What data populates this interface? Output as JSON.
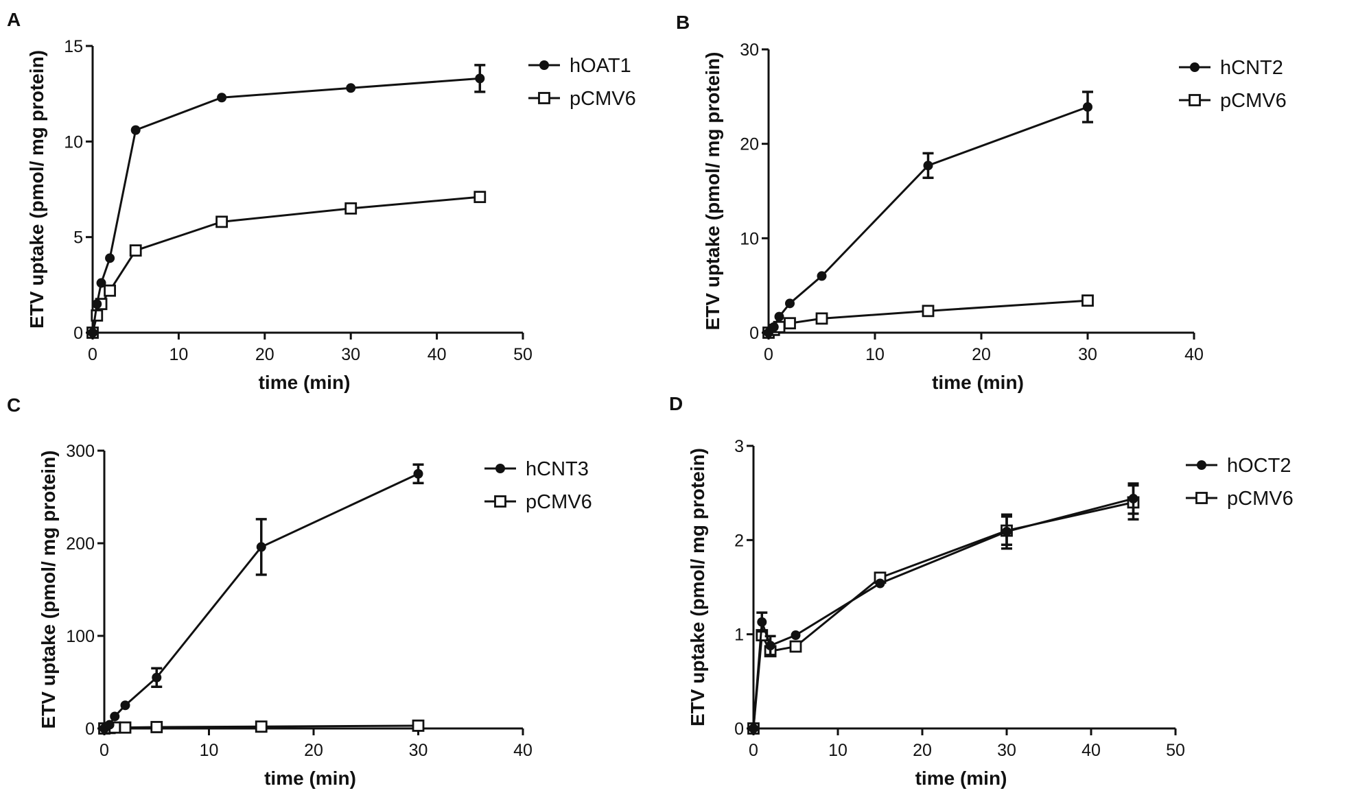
{
  "chart_data": [
    {
      "panel": "A",
      "type": "line",
      "xlabel": "time (min)",
      "ylabel": "ETV uptake (pmol/ mg protein)",
      "xlim": [
        0,
        50
      ],
      "ylim": [
        0,
        15
      ],
      "xticks": [
        0,
        10,
        20,
        30,
        40,
        50
      ],
      "yticks": [
        0,
        5,
        10,
        15
      ],
      "legend_position": "top-right",
      "series": [
        {
          "name": "hOAT1",
          "marker": "filled-circle",
          "x": [
            0,
            0.5,
            1,
            2,
            5,
            15,
            30,
            45
          ],
          "y": [
            0,
            1.5,
            2.6,
            3.9,
            10.6,
            12.3,
            12.8,
            13.3
          ],
          "err": [
            0,
            0,
            0,
            0,
            0,
            0,
            0,
            0.7
          ]
        },
        {
          "name": "pCMV6",
          "marker": "open-square",
          "x": [
            0,
            0.5,
            1,
            2,
            5,
            15,
            30,
            45
          ],
          "y": [
            0,
            0.9,
            1.5,
            2.2,
            4.3,
            5.8,
            6.5,
            7.1
          ],
          "err": [
            0,
            0,
            0,
            0,
            0,
            0,
            0,
            0
          ]
        }
      ]
    },
    {
      "panel": "B",
      "type": "line",
      "xlabel": "time (min)",
      "ylabel": "ETV uptake (pmol/ mg protein)",
      "xlim": [
        0,
        40
      ],
      "ylim": [
        0,
        30
      ],
      "xticks": [
        0,
        10,
        20,
        30,
        40
      ],
      "yticks": [
        0,
        10,
        20,
        30
      ],
      "legend_position": "top-right",
      "series": [
        {
          "name": "hCNT2",
          "marker": "filled-circle",
          "x": [
            0,
            0.5,
            1,
            2,
            5,
            15,
            30
          ],
          "y": [
            0,
            0.6,
            1.7,
            3.1,
            6.0,
            17.7,
            23.9
          ],
          "err": [
            0,
            0,
            0,
            0,
            0,
            1.3,
            1.6
          ]
        },
        {
          "name": "pCMV6",
          "marker": "open-square",
          "x": [
            0,
            0.5,
            1,
            2,
            5,
            15,
            30
          ],
          "y": [
            0,
            0.3,
            0.6,
            1.0,
            1.5,
            2.3,
            3.4
          ],
          "err": [
            0,
            0,
            0,
            0,
            0,
            0,
            0
          ]
        }
      ]
    },
    {
      "panel": "C",
      "type": "line",
      "xlabel": "time (min)",
      "ylabel": "ETV uptake (pmol/ mg protein)",
      "xlim": [
        0,
        40
      ],
      "ylim": [
        0,
        300
      ],
      "xticks": [
        0,
        10,
        20,
        30,
        40
      ],
      "yticks": [
        0,
        100,
        200,
        300
      ],
      "legend_position": "top-right",
      "series": [
        {
          "name": "hCNT3",
          "marker": "filled-circle",
          "x": [
            0,
            0.5,
            1,
            2,
            5,
            15,
            30
          ],
          "y": [
            0,
            4,
            13,
            25,
            55,
            196,
            275
          ],
          "err": [
            0,
            0,
            0,
            0,
            10,
            30,
            10
          ]
        },
        {
          "name": "pCMV6",
          "marker": "open-square",
          "x": [
            0,
            0.5,
            1,
            2,
            5,
            15,
            30
          ],
          "y": [
            0,
            0.5,
            1,
            1,
            1.5,
            2,
            3
          ],
          "err": [
            0,
            0,
            0,
            0,
            0,
            0,
            0
          ]
        }
      ]
    },
    {
      "panel": "D",
      "type": "line",
      "xlabel": "time (min)",
      "ylabel": "ETV uptake (pmol/ mg protein)",
      "xlim": [
        0,
        50
      ],
      "ylim": [
        0,
        3
      ],
      "xticks": [
        0,
        10,
        20,
        30,
        40,
        50
      ],
      "yticks": [
        0,
        1,
        2,
        3
      ],
      "legend_position": "top-right",
      "series": [
        {
          "name": "hOCT2",
          "marker": "filled-circle",
          "x": [
            0,
            1,
            2,
            5,
            15,
            30,
            45
          ],
          "y": [
            0,
            1.13,
            0.88,
            0.99,
            1.54,
            2.09,
            2.44
          ],
          "err": [
            0,
            0.1,
            0.1,
            0,
            0,
            0.18,
            0.16
          ]
        },
        {
          "name": "pCMV6",
          "marker": "open-square",
          "x": [
            0,
            1,
            2,
            5,
            15,
            30,
            45
          ],
          "y": [
            0,
            0.99,
            0.82,
            0.87,
            1.6,
            2.1,
            2.4
          ],
          "err": [
            0,
            0.05,
            0.05,
            0,
            0,
            0.15,
            0.18
          ]
        }
      ]
    }
  ]
}
